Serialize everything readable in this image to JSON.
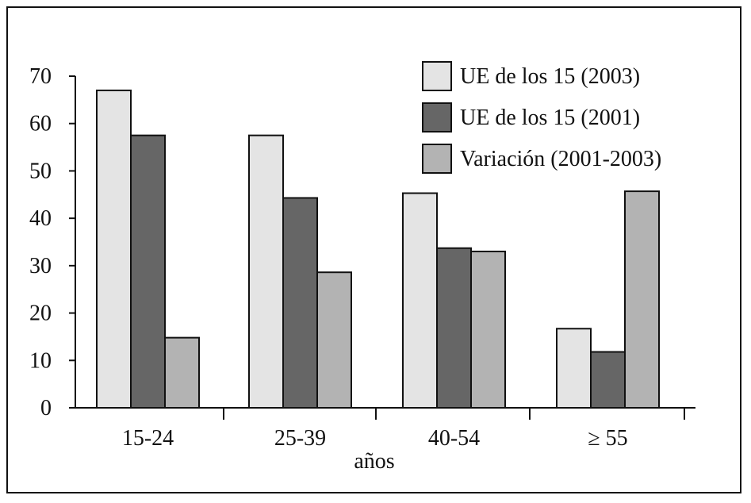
{
  "chart_data": {
    "type": "bar",
    "xlabel": "años",
    "ylabel": "",
    "ylim": [
      0,
      70
    ],
    "yticks": [
      0,
      10,
      20,
      30,
      40,
      50,
      60,
      70
    ],
    "categories": [
      "15-24",
      "25-39",
      "40-54",
      "≥ 55"
    ],
    "series": [
      {
        "name": "UE de los 15 (2003)",
        "color": "#e4e4e4",
        "values": [
          67,
          57.5,
          45.3,
          16.7
        ]
      },
      {
        "name": "UE de los 15 (2001)",
        "color": "#666666",
        "values": [
          57.5,
          44.3,
          33.7,
          11.8
        ]
      },
      {
        "name": "Variación (2001-2003)",
        "color": "#b3b3b3",
        "values": [
          14.8,
          28.6,
          33.0,
          45.7
        ]
      }
    ],
    "legend_position": "top-right",
    "grid": false
  }
}
